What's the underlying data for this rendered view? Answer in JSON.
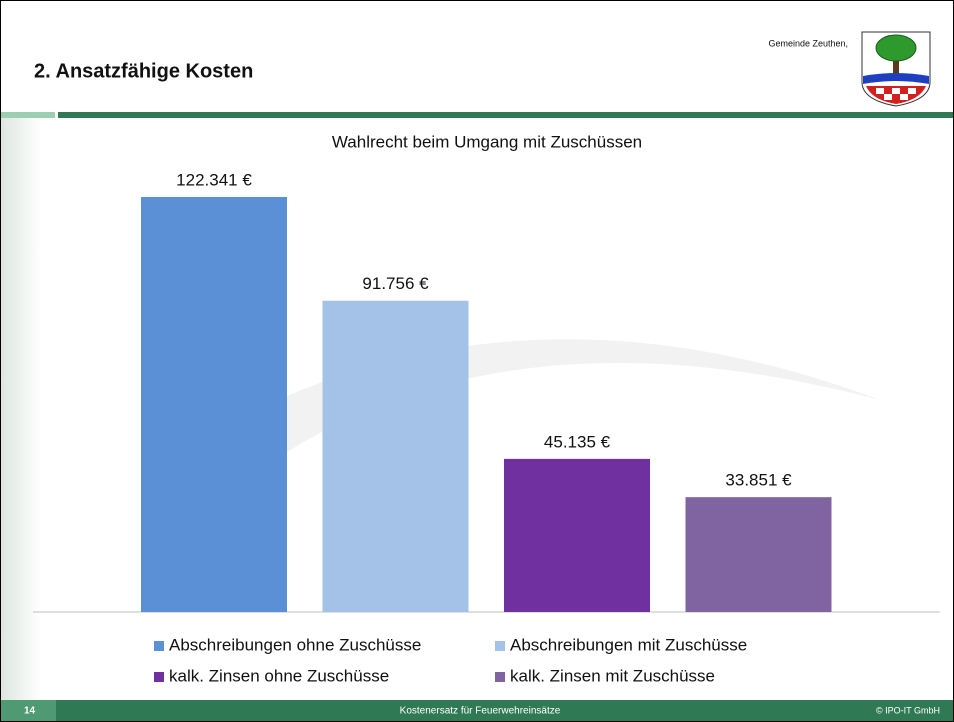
{
  "header": {
    "title": "2. Ansatzfähige Kosten",
    "municipality": "Gemeinde Zeuthen,"
  },
  "footer": {
    "page": "14",
    "text": "Kostenersatz für Feuerwehreinsätze",
    "copyright": "© IPO-IT GmbH"
  },
  "chart_data": {
    "type": "bar",
    "title": "Wahlrecht beim Umgang mit Zuschüssen",
    "ylim": [
      0,
      130000
    ],
    "series": [
      {
        "name": "Abschreibungen ohne Zuschüsse",
        "color": "#5b8fd6",
        "values": [
          122341
        ],
        "value_labels": [
          "122.341 €"
        ]
      },
      {
        "name": "Abschreibungen mit Zuschüsse",
        "color": "#a4c2e8",
        "values": [
          91756
        ],
        "value_labels": [
          "91.756 €"
        ]
      },
      {
        "name": "kalk. Zinsen ohne Zuschüsse",
        "color": "#7030a0",
        "values": [
          45135
        ],
        "value_labels": [
          "45.135 €"
        ]
      },
      {
        "name": "kalk. Zinsen mit Zuschüsse",
        "color": "#8064a2",
        "values": [
          33851
        ],
        "value_labels": [
          "33.851 €"
        ]
      }
    ]
  }
}
